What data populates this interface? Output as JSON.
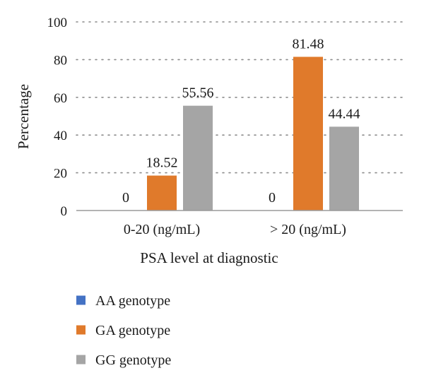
{
  "chart_data": {
    "type": "bar",
    "title": "",
    "xlabel": "PSA level at diagnostic",
    "ylabel": "Percentage",
    "ylim": [
      0,
      100
    ],
    "yticks": [
      0,
      20,
      40,
      60,
      80,
      100
    ],
    "categories": [
      "0-20 (ng/mL)",
      "> 20 (ng/mL)"
    ],
    "series": [
      {
        "name": "AA genotype",
        "color": "#4472c4",
        "values": [
          0,
          0
        ]
      },
      {
        "name": "GA genotype",
        "color": "#e07a2b",
        "values": [
          18.52,
          81.48
        ]
      },
      {
        "name": "GG genotype",
        "color": "#a5a5a5",
        "values": [
          55.56,
          44.44
        ]
      }
    ],
    "data_labels": [
      [
        "0",
        "0"
      ],
      [
        "18.52",
        "81.48"
      ],
      [
        "55.56",
        "44.44"
      ]
    ],
    "grid": true,
    "legend_position": "bottom"
  }
}
